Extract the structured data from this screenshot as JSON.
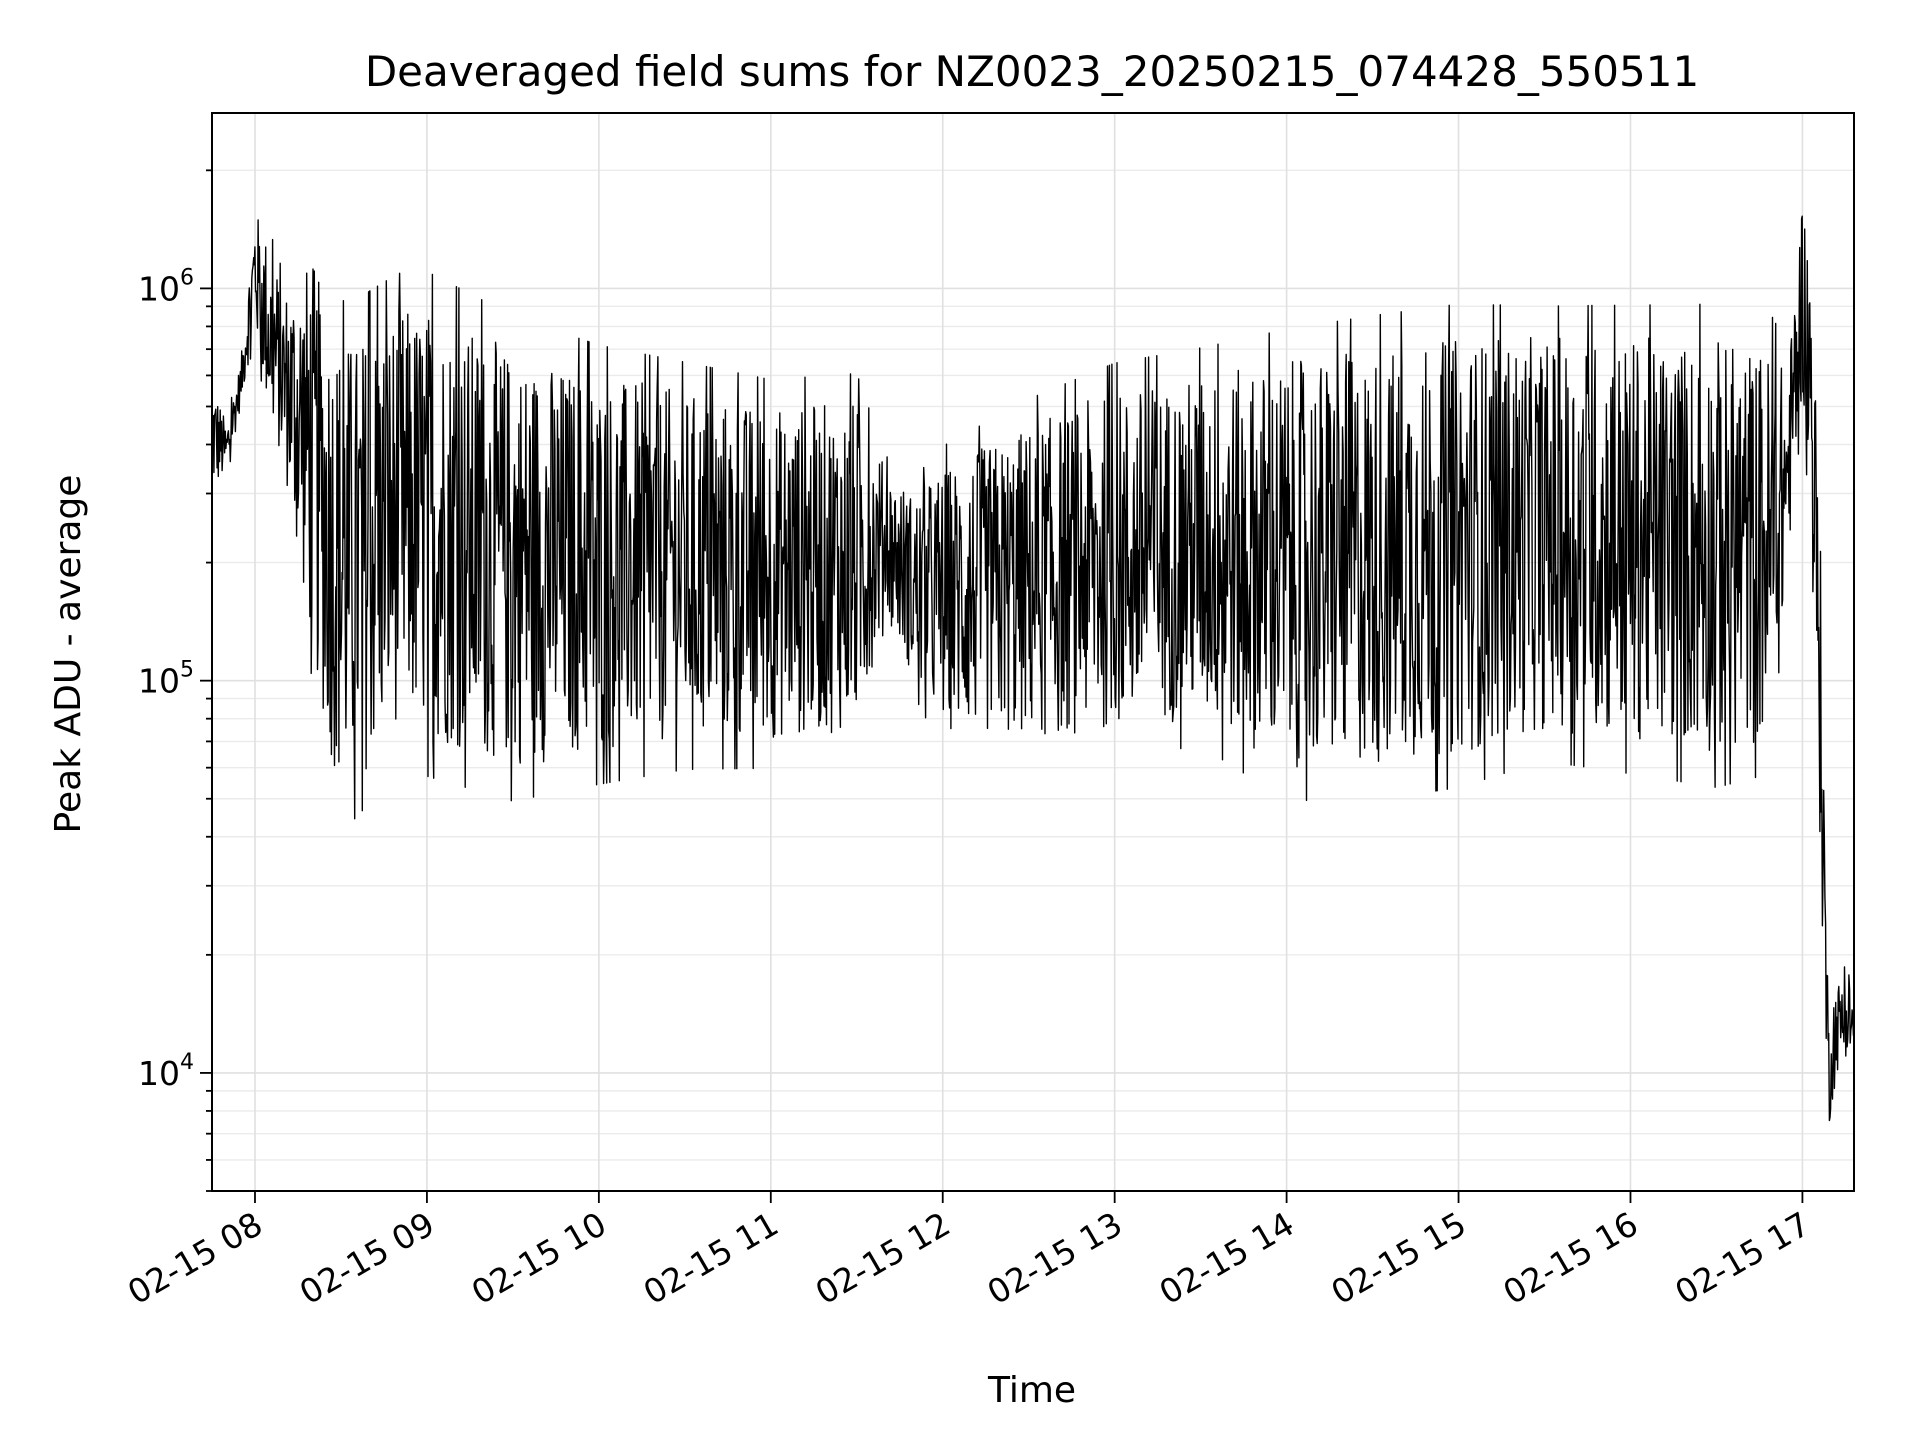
{
  "chart_data": {
    "type": "line",
    "title": "Deaveraged field sums for NZ0023_20250215_074428_550511",
    "xlabel": "Time",
    "ylabel": "Peak ADU - average",
    "yscale": "log",
    "ylim": [
      5000,
      2800000
    ],
    "xlim": [
      "2025-02-15 07:45",
      "2025-02-15 17:18"
    ],
    "grid": true,
    "line_color": "#000000",
    "x_ticks": [
      "02-15 08",
      "02-15 09",
      "02-15 10",
      "02-15 11",
      "02-15 12",
      "02-15 13",
      "02-15 14",
      "02-15 15",
      "02-15 16",
      "02-15 17"
    ],
    "x_tick_times": [
      "2025-02-15 08:00",
      "2025-02-15 09:00",
      "2025-02-15 10:00",
      "2025-02-15 11:00",
      "2025-02-15 12:00",
      "2025-02-15 13:00",
      "2025-02-15 14:00",
      "2025-02-15 15:00",
      "2025-02-15 16:00",
      "2025-02-15 17:00"
    ],
    "y_ticks": [
      {
        "value": 10000,
        "base": "10",
        "exp": "4"
      },
      {
        "value": 100000,
        "base": "10",
        "exp": "5"
      },
      {
        "value": 1000000,
        "base": "10",
        "exp": "6"
      }
    ],
    "series": [
      {
        "x": [
          "2025-02-15 07:45",
          "2025-02-15 07:50",
          "2025-02-15 07:55",
          "2025-02-15 08:00",
          "2025-02-15 08:05",
          "2025-02-15 08:10",
          "2025-02-15 08:15",
          "2025-02-15 08:20",
          "2025-02-15 08:25",
          "2025-02-15 08:30",
          "2025-02-15 08:35",
          "2025-02-15 08:40",
          "2025-02-15 08:50",
          "2025-02-15 09:00",
          "2025-02-15 09:30",
          "2025-02-15 10:00",
          "2025-02-15 10:30",
          "2025-02-15 11:00",
          "2025-02-15 11:30",
          "2025-02-15 11:40",
          "2025-02-15 11:50",
          "2025-02-15 12:00",
          "2025-02-15 12:30",
          "2025-02-15 13:00",
          "2025-02-15 13:30",
          "2025-02-15 14:00",
          "2025-02-15 14:30",
          "2025-02-15 15:00",
          "2025-02-15 15:30",
          "2025-02-15 16:00",
          "2025-02-15 16:30",
          "2025-02-15 16:50",
          "2025-02-15 16:55",
          "2025-02-15 17:00",
          "2025-02-15 17:03",
          "2025-02-15 17:06",
          "2025-02-15 17:09",
          "2025-02-15 17:12",
          "2025-02-15 17:15",
          "2025-02-15 17:18"
        ],
        "low": [
          300000,
          330000,
          500000,
          800000,
          450000,
          350000,
          200000,
          120000,
          70000,
          50000,
          55000,
          60000,
          80000,
          70000,
          60000,
          65000,
          70000,
          70000,
          75000,
          150000,
          100000,
          75000,
          70000,
          75000,
          80000,
          60000,
          60000,
          65000,
          75000,
          70000,
          65000,
          70000,
          200000,
          550000,
          250000,
          40000,
          7000,
          10000,
          11000,
          11000
        ],
        "high": [
          600000,
          450000,
          650000,
          1600000,
          1300000,
          1000000,
          1100000,
          1200000,
          900000,
          750000,
          750000,
          800000,
          900000,
          900000,
          700000,
          600000,
          550000,
          500000,
          520000,
          350000,
          300000,
          350000,
          450000,
          550000,
          600000,
          650000,
          700000,
          750000,
          750000,
          750000,
          750000,
          700000,
          600000,
          1800000,
          1200000,
          300000,
          15000,
          17000,
          18000,
          16000
        ]
      }
    ]
  }
}
